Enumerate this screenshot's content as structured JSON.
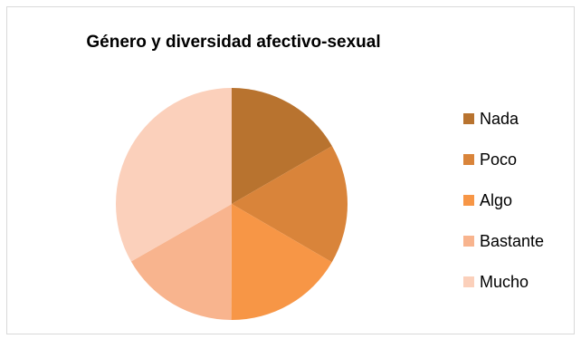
{
  "chart_data": {
    "type": "pie",
    "title": "Género y diversidad afectivo-sexual",
    "categories": [
      "Nada",
      "Poco",
      "Algo",
      "Bastante",
      "Mucho"
    ],
    "values": [
      16.7,
      16.7,
      16.7,
      16.7,
      33.3
    ],
    "colors": [
      "#b8732f",
      "#d9843a",
      "#f79646",
      "#f8b48e",
      "#fbd0bb"
    ],
    "legend_position": "right"
  }
}
